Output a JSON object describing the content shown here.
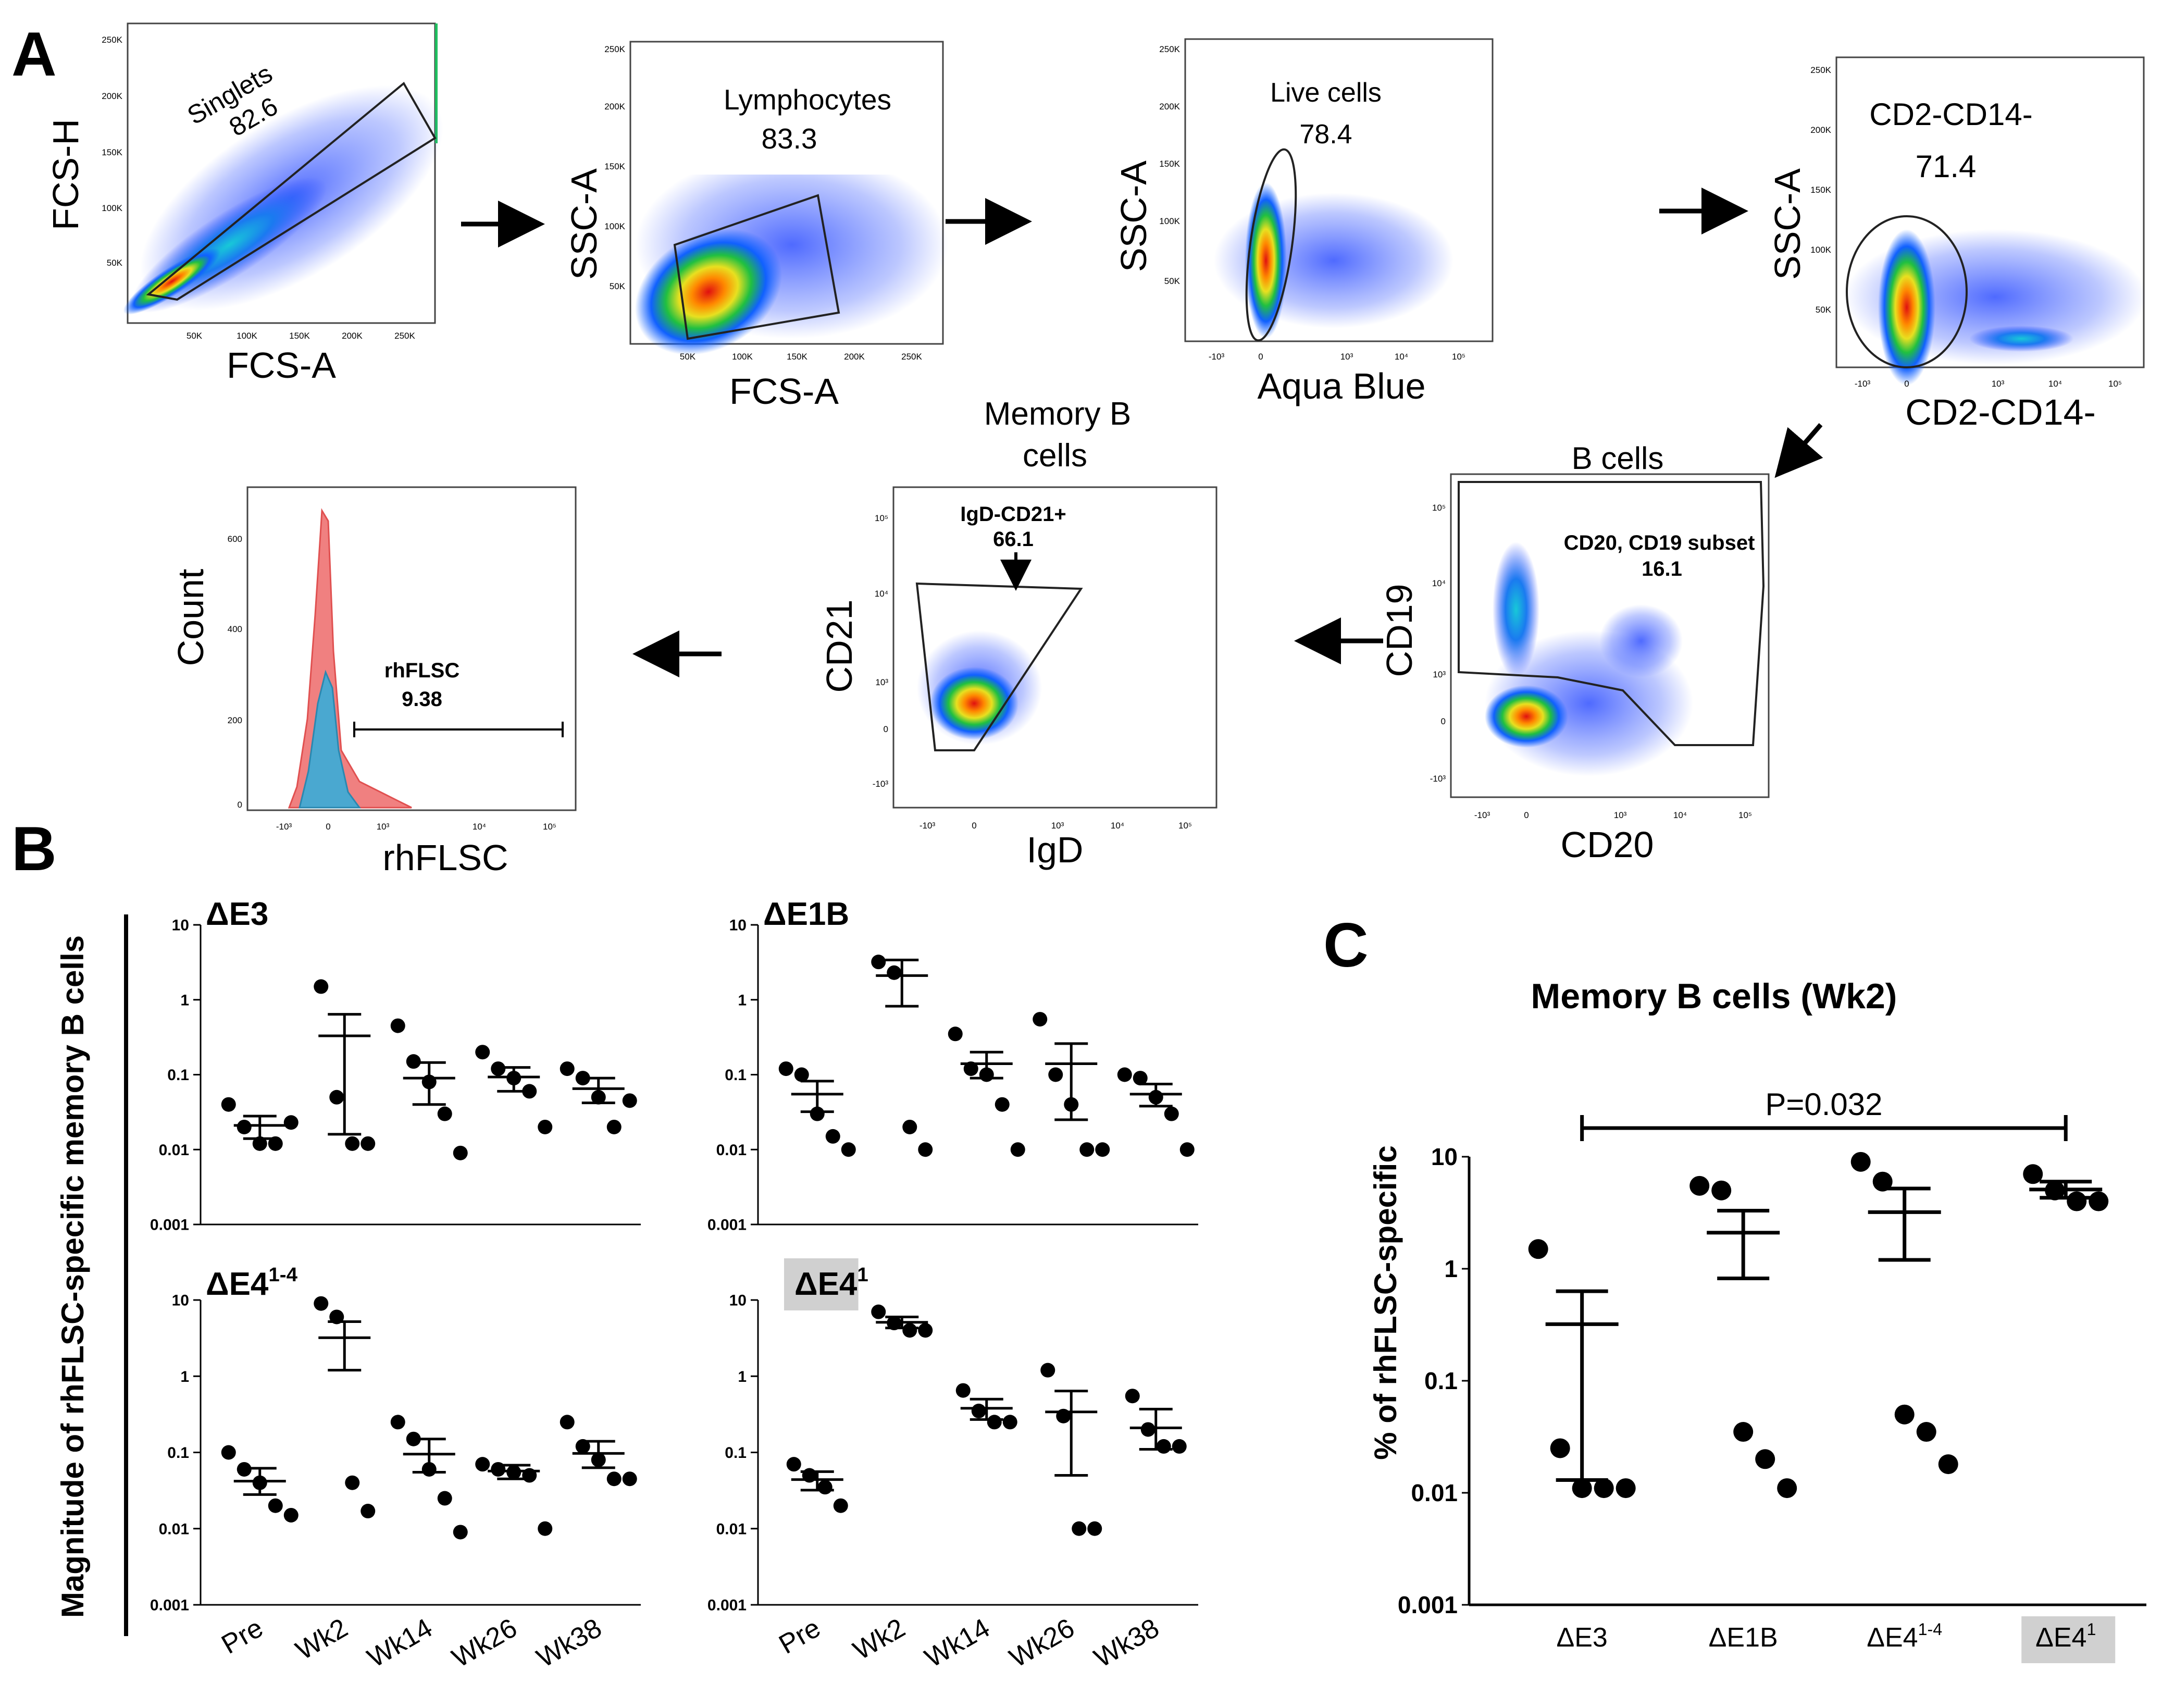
{
  "panel_letters": {
    "a": "A",
    "b": "B",
    "c": "C"
  },
  "flow": {
    "singlets": {
      "name": "Singlets",
      "value": "82.6",
      "xlabel": "FCS-A",
      "ylabel": "FCS-H",
      "xticks": [
        "50K",
        "100K",
        "150K",
        "200K",
        "250K"
      ],
      "yticks": [
        "50K",
        "100K",
        "150K",
        "200K",
        "250K"
      ]
    },
    "lymphocytes": {
      "name": "Lymphocytes",
      "value": "83.3",
      "xlabel": "FCS-A",
      "ylabel": "SSC-A",
      "xticks": [
        "50K",
        "100K",
        "150K",
        "200K",
        "250K"
      ],
      "yticks": [
        "50K",
        "100K",
        "150K",
        "200K",
        "250K"
      ]
    },
    "live": {
      "name": "Live cells",
      "value": "78.4",
      "xlabel": "Aqua Blue",
      "ylabel": "SSC-A",
      "xticks": [
        "-10³",
        "0",
        "10³",
        "10⁴",
        "10⁵"
      ],
      "yticks": [
        "50K",
        "100K",
        "150K",
        "200K",
        "250K"
      ]
    },
    "cd2cd14": {
      "name": "CD2-CD14-",
      "value": "71.4",
      "xlabel": "CD2-CD14-",
      "ylabel": "SSC-A",
      "xticks": [
        "-10³",
        "0",
        "10³",
        "10⁴",
        "10⁵"
      ],
      "yticks": [
        "50K",
        "100K",
        "150K",
        "200K",
        "250K"
      ]
    },
    "bcells": {
      "title": "B cells",
      "name": "CD20, CD19 subset",
      "value": "16.1",
      "xlabel": "CD20",
      "ylabel": "CD19",
      "xticks": [
        "-10³",
        "0",
        "10³",
        "10⁴",
        "10⁵"
      ],
      "yticks": [
        "-10³",
        "0",
        "10³",
        "10⁴",
        "10⁵"
      ]
    },
    "memory": {
      "title_line1": "Memory B",
      "title_line2": "cells",
      "name": "IgD-CD21+",
      "value": "66.1",
      "xlabel": "IgD",
      "ylabel": "CD21",
      "xticks": [
        "-10³",
        "0",
        "10³",
        "10⁴",
        "10⁵"
      ],
      "yticks": [
        "-10³",
        "0",
        "10³",
        "10⁴",
        "10⁵"
      ]
    },
    "histogram": {
      "name": "rhFLSC",
      "value": "9.38",
      "xlabel": "rhFLSC",
      "ylabel": "Count",
      "xticks": [
        "-10³",
        "0",
        "10³",
        "10⁴",
        "10⁵"
      ],
      "yticks": [
        "0",
        "200",
        "400",
        "600"
      ]
    }
  },
  "panel_b_ylabel": "Magnitude of  rhFLSC-specific memory B cells",
  "panel_c_ylabel": "% of  rhFLSC-specific",
  "log_ticks": [
    "0.001",
    "0.01",
    "0.1",
    "1",
    "10"
  ],
  "chart_data": [
    {
      "type": "scatter",
      "panel": "B",
      "title": "ΔE3",
      "categories": [
        "Pre",
        "Wk2",
        "Wk14",
        "Wk26",
        "Wk38"
      ],
      "yscale": "log",
      "ylim": [
        0.001,
        10
      ],
      "points": [
        [
          0.04,
          0.02,
          0.012,
          0.012,
          0.023
        ],
        [
          1.5,
          0.05,
          0.012,
          0.012
        ],
        [
          0.45,
          0.15,
          0.08,
          0.03,
          0.009
        ],
        [
          0.2,
          0.12,
          0.09,
          0.06,
          0.02
        ],
        [
          0.12,
          0.09,
          0.05,
          0.02,
          0.045
        ]
      ],
      "mean": [
        0.021,
        0.33,
        0.09,
        0.093,
        0.065
      ],
      "err_low": [
        0.014,
        0.016,
        0.04,
        0.06,
        0.042
      ],
      "err_high": [
        0.028,
        0.64,
        0.145,
        0.125,
        0.09
      ]
    },
    {
      "type": "scatter",
      "panel": "B",
      "title": "ΔE1B",
      "categories": [
        "Pre",
        "Wk2",
        "Wk14",
        "Wk26",
        "Wk38"
      ],
      "yscale": "log",
      "ylim": [
        0.001,
        10
      ],
      "points": [
        [
          0.12,
          0.1,
          0.03,
          0.015,
          0.01
        ],
        [
          3.2,
          2.3,
          0.02,
          0.01
        ],
        [
          0.35,
          0.12,
          0.1,
          0.04,
          0.01
        ],
        [
          0.55,
          0.1,
          0.04,
          0.01,
          0.01
        ],
        [
          0.1,
          0.09,
          0.05,
          0.03,
          0.01
        ]
      ],
      "mean": [
        0.055,
        2.1,
        0.14,
        0.14,
        0.055
      ],
      "err_low": [
        0.032,
        0.82,
        0.09,
        0.025,
        0.038
      ],
      "err_high": [
        0.082,
        3.4,
        0.2,
        0.26,
        0.075
      ]
    },
    {
      "type": "scatter",
      "panel": "B",
      "title": "ΔE4",
      "title_sup": "1-4",
      "categories": [
        "Pre",
        "Wk2",
        "Wk14",
        "Wk26",
        "Wk38"
      ],
      "yscale": "log",
      "ylim": [
        0.001,
        10
      ],
      "points": [
        [
          0.1,
          0.06,
          0.04,
          0.02,
          0.015
        ],
        [
          9.0,
          6.0,
          0.04,
          0.017
        ],
        [
          0.25,
          0.15,
          0.06,
          0.025,
          0.009
        ],
        [
          0.07,
          0.06,
          0.055,
          0.05,
          0.01
        ],
        [
          0.25,
          0.12,
          0.08,
          0.045,
          0.045
        ]
      ],
      "mean": [
        0.042,
        3.2,
        0.095,
        0.057,
        0.097
      ],
      "err_low": [
        0.028,
        1.2,
        0.055,
        0.045,
        0.063
      ],
      "err_high": [
        0.062,
        5.2,
        0.15,
        0.068,
        0.14
      ]
    },
    {
      "type": "scatter",
      "panel": "B",
      "title": "ΔE4",
      "title_sup": "1",
      "highlight": true,
      "categories": [
        "Pre",
        "Wk2",
        "Wk14",
        "Wk26",
        "Wk38"
      ],
      "yscale": "log",
      "ylim": [
        0.001,
        10
      ],
      "points": [
        [
          0.07,
          0.05,
          0.035,
          0.02
        ],
        [
          7.0,
          5.0,
          4.0,
          4.0
        ],
        [
          0.65,
          0.35,
          0.25,
          0.25
        ],
        [
          1.2,
          0.3,
          0.01,
          0.01
        ],
        [
          0.55,
          0.2,
          0.12,
          0.12
        ]
      ],
      "mean": [
        0.044,
        5.1,
        0.38,
        0.34,
        0.21
      ],
      "err_low": [
        0.032,
        4.3,
        0.27,
        0.05,
        0.11
      ],
      "err_high": [
        0.056,
        6.0,
        0.5,
        0.64,
        0.37
      ]
    },
    {
      "type": "scatter",
      "panel": "C",
      "title": "Memory B cells (Wk2)",
      "categories": [
        "ΔE3",
        "ΔE1B",
        "ΔE4",
        "ΔE4"
      ],
      "category_sups": [
        "",
        "",
        "1-4",
        "1"
      ],
      "highlight_index": 3,
      "yscale": "log",
      "ylim": [
        0.001,
        10
      ],
      "significance": "P=0.032",
      "points": [
        [
          1.5,
          0.025,
          0.011,
          0.011,
          0.011
        ],
        [
          5.5,
          5.0,
          0.035,
          0.02,
          0.011
        ],
        [
          9.0,
          6.0,
          0.05,
          0.035,
          0.018
        ],
        [
          7.0,
          5.0,
          4.0,
          4.0
        ]
      ],
      "mean": [
        0.32,
        2.1,
        3.2,
        5.1
      ],
      "err_low": [
        0.013,
        0.82,
        1.2,
        4.3
      ],
      "err_high": [
        0.63,
        3.3,
        5.2,
        6.0
      ]
    }
  ]
}
